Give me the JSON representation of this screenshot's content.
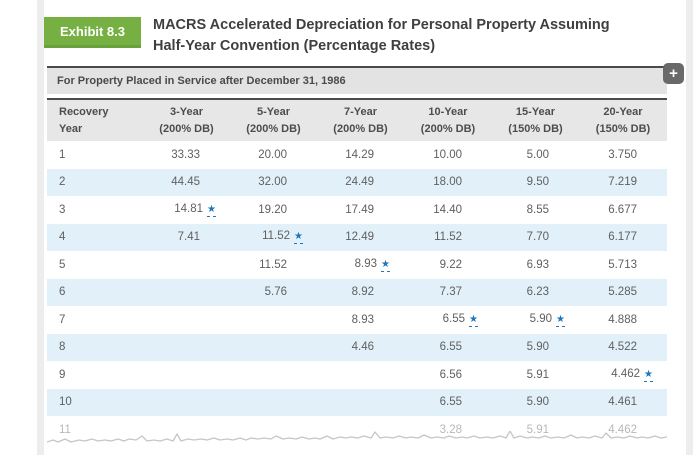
{
  "exhibit": {
    "badge": "Exhibit 8.3",
    "title_line1": "MACRS Accelerated Depreciation for Personal Property Assuming",
    "title_line2": "Half-Year Convention (Percentage Rates)"
  },
  "table": {
    "caption": "For Property Placed in Service after December 31, 1986",
    "expand_icon_label": "+",
    "columns": [
      {
        "line1": "Recovery",
        "line2": "Year"
      },
      {
        "line1": "3-Year",
        "line2": "(200% DB)"
      },
      {
        "line1": "5-Year",
        "line2": "(200% DB)"
      },
      {
        "line1": "7-Year",
        "line2": "(200% DB)"
      },
      {
        "line1": "10-Year",
        "line2": "(200% DB)"
      },
      {
        "line1": "15-Year",
        "line2": "(150% DB)"
      },
      {
        "line1": "20-Year",
        "line2": "(150% DB)"
      }
    ],
    "rows": [
      {
        "year": "1",
        "cells": [
          "33.33",
          "20.00",
          "14.29",
          "10.00",
          "5.00",
          "3.750"
        ],
        "stars": [],
        "faded": false
      },
      {
        "year": "2",
        "cells": [
          "44.45",
          "32.00",
          "24.49",
          "18.00",
          "9.50",
          "7.219"
        ],
        "stars": [],
        "faded": false
      },
      {
        "year": "3",
        "cells": [
          "14.81",
          "19.20",
          "17.49",
          "14.40",
          "8.55",
          "6.677"
        ],
        "stars": [
          0
        ],
        "faded": false
      },
      {
        "year": "4",
        "cells": [
          "7.41",
          "11.52",
          "12.49",
          "11.52",
          "7.70",
          "6.177"
        ],
        "stars": [
          1
        ],
        "faded": false
      },
      {
        "year": "5",
        "cells": [
          "",
          "11.52",
          "8.93",
          "9.22",
          "6.93",
          "5.713"
        ],
        "stars": [
          2
        ],
        "faded": false
      },
      {
        "year": "6",
        "cells": [
          "",
          "5.76",
          "8.92",
          "7.37",
          "6.23",
          "5.285"
        ],
        "stars": [],
        "faded": false
      },
      {
        "year": "7",
        "cells": [
          "",
          "",
          "8.93",
          "6.55",
          "5.90",
          "4.888"
        ],
        "stars": [
          3,
          4
        ],
        "faded": false
      },
      {
        "year": "8",
        "cells": [
          "",
          "",
          "4.46",
          "6.55",
          "5.90",
          "4.522"
        ],
        "stars": [],
        "faded": false
      },
      {
        "year": "9",
        "cells": [
          "",
          "",
          "",
          "6.56",
          "5.91",
          "4.462"
        ],
        "stars": [
          5
        ],
        "faded": false
      },
      {
        "year": "10",
        "cells": [
          "",
          "",
          "",
          "6.55",
          "5.90",
          "4.461"
        ],
        "stars": [],
        "faded": false
      },
      {
        "year": "11",
        "cells": [
          "",
          "",
          "",
          "3.28",
          "5.91",
          "4.462"
        ],
        "stars": [],
        "faded": true
      }
    ],
    "star_glyph": "★"
  },
  "colors": {
    "accent_green": "#76b043",
    "alt_row_blue": "#e2f0f9",
    "star_blue": "#1e77bd",
    "bar_gray": "#e3e3e3"
  }
}
